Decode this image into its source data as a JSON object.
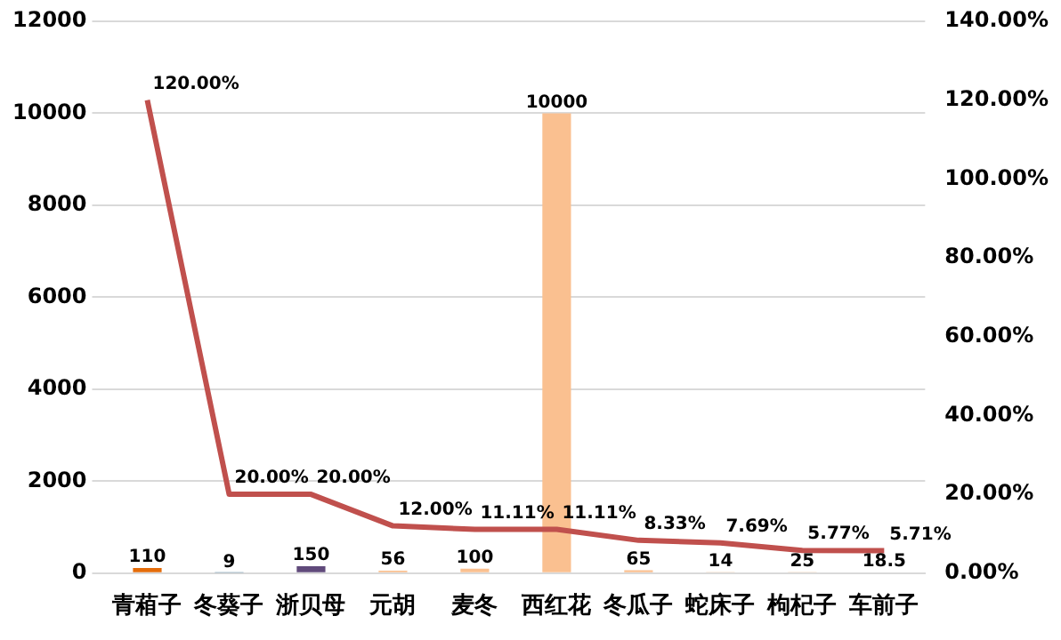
{
  "chart_data": {
    "type": "bar",
    "categories": [
      "青葙子",
      "冬葵子",
      "浙贝母",
      "元胡",
      "麦冬",
      "西红花",
      "冬瓜子",
      "蛇床子",
      "枸杞子",
      "车前子"
    ],
    "series": [
      {
        "colors": [
          "#e46c0a",
          "#4f7f9f",
          "#604a7b",
          "#fac090",
          "#fac090",
          "#fac090",
          "#fac090",
          "#fac090",
          "#fac090",
          "#fac090"
        ],
        "values": [
          110,
          9,
          150,
          56,
          100,
          10000,
          65,
          14,
          25,
          18.5
        ],
        "value_labels": [
          "110",
          "9",
          "150",
          "56",
          "100",
          "10000",
          "65",
          "14",
          "25",
          "18.5"
        ]
      },
      {
        "type": "line",
        "axis": "y2",
        "color": "#c0504d",
        "values": [
          1.2,
          0.2,
          0.2,
          0.12,
          0.1111,
          0.1111,
          0.0833,
          0.0769,
          0.0577,
          0.0571
        ],
        "value_labels": [
          "120.00%",
          "20.00%",
          "20.00%",
          "12.00%",
          "11.11%",
          "11.11%",
          "8.33%",
          "7.69%",
          "5.77%",
          "5.71%"
        ]
      }
    ],
    "ylim": [
      0,
      12000
    ],
    "yticks": [
      0,
      2000,
      4000,
      6000,
      8000,
      10000,
      12000
    ],
    "y2lim": [
      0,
      1.4
    ],
    "y2ticks": [
      {
        "value": 0,
        "label": "0.00%"
      },
      {
        "value": 0.2,
        "label": "20.00%"
      },
      {
        "value": 0.4,
        "label": "40.00%"
      },
      {
        "value": 0.6,
        "label": "60.00%"
      },
      {
        "value": 0.8,
        "label": "80.00%"
      },
      {
        "value": 1,
        "label": "100.00%"
      },
      {
        "value": 1.2,
        "label": "120.00%"
      },
      {
        "value": 1.4,
        "label": "140.00%"
      }
    ],
    "grid": "y",
    "legend": false,
    "marker": "none"
  }
}
